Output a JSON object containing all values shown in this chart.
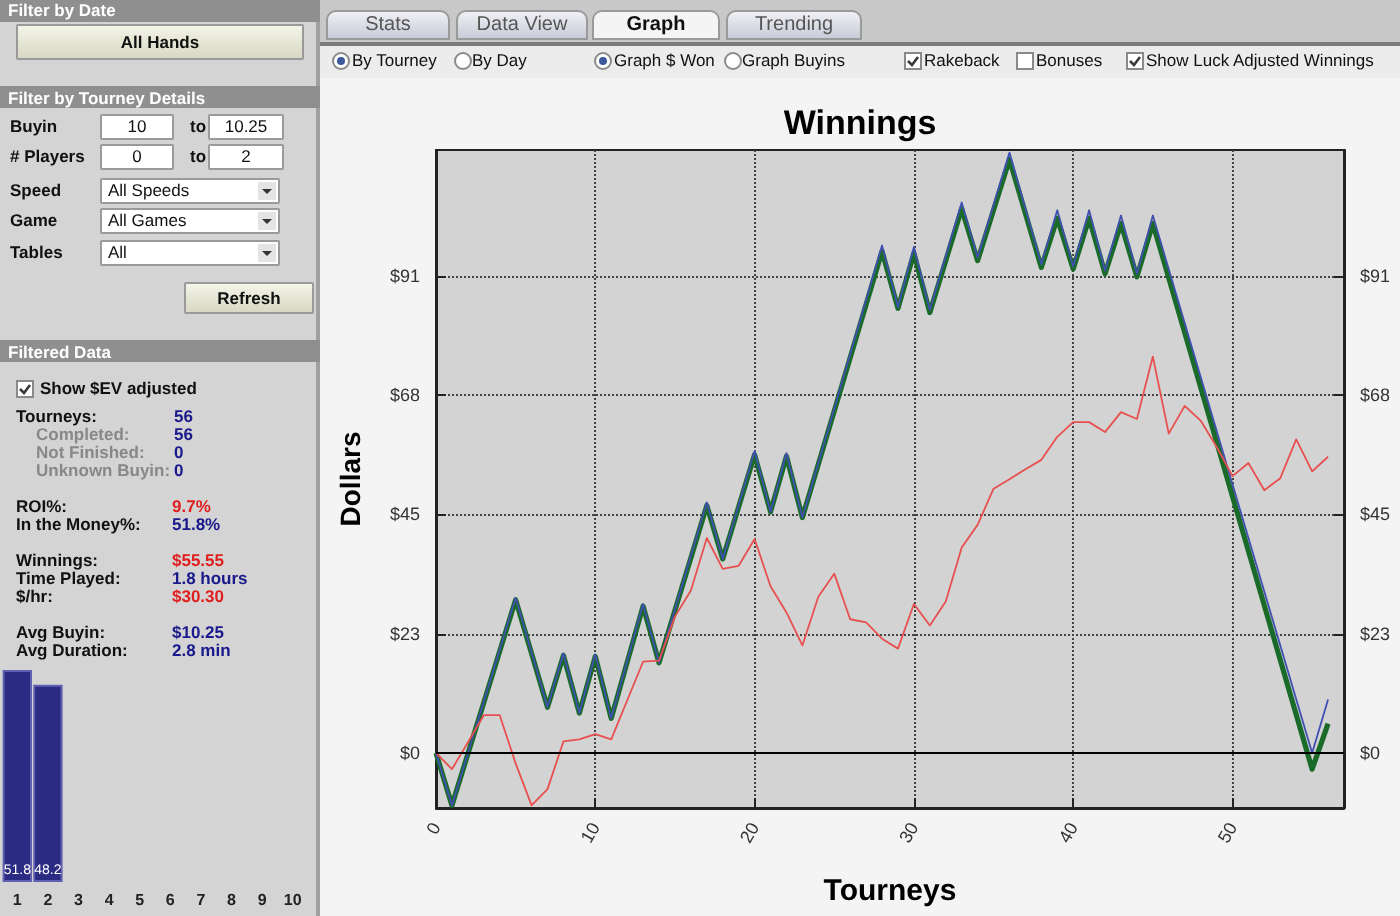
{
  "chart_data": [
    {
      "type": "other",
      "annotations": [
        "Filter by Date",
        "All Hands",
        "Filter by Tourney Details",
        "Buyin",
        "10",
        "to",
        "10.25",
        "# Players",
        "0",
        "to",
        "2",
        "Speed",
        "All Speeds",
        "Game",
        "All Games",
        "Tables",
        "All",
        "Refresh",
        "Filtered Data",
        "Show $EV adjusted",
        "Tourneys:",
        "56",
        "Completed:",
        "56",
        "Not Finished:",
        "0",
        "Unknown Buyin:",
        "0",
        "ROI%:",
        "9.7%",
        "In the Money%:",
        "51.8%",
        "Winnings:",
        "$55.55",
        "Time Played:",
        "1.8 hours",
        "$/hr:",
        "$30.30",
        "Avg Buyin:",
        "$10.25",
        "Avg Duration:",
        "2.8 min",
        "Stats",
        "Data View",
        "Graph",
        "Trending",
        "By Tourney",
        "By Day",
        "Graph $ Won",
        "Graph Buyins",
        "Rakeback",
        "Bonuses",
        "Show Luck Adjusted Winnings"
      ]
    },
    {
      "type": "bar",
      "categories": [
        "1",
        "2",
        "3",
        "4",
        "5",
        "6",
        "7",
        "8",
        "9",
        "10"
      ],
      "values": [
        51.8,
        48.2,
        null,
        null,
        null,
        null,
        null,
        null,
        null,
        null
      ],
      "color": "#2b2b84",
      "data_labels": true
    },
    {
      "type": "line",
      "title": "Winnings",
      "xlabel": "Tourneys",
      "ylabel": "Dollars",
      "xlim": [
        0,
        57
      ],
      "ylim": [
        -10.5,
        115
      ],
      "xticks": [
        0,
        10,
        20,
        30,
        40,
        50
      ],
      "yticks": [
        {
          "value": 0,
          "label": "$0"
        },
        {
          "value": 22.75,
          "label": "$23"
        },
        {
          "value": 45.5,
          "label": "$45"
        },
        {
          "value": 68.25,
          "label": "$68"
        },
        {
          "value": 91,
          "label": "$91"
        }
      ],
      "y2lim": [
        -10.5,
        115
      ],
      "y2ticks": [
        {
          "value": 0,
          "label": "$0"
        },
        {
          "value": 22.75,
          "label": "$23"
        },
        {
          "value": 45.5,
          "label": "$45"
        },
        {
          "value": 68.25,
          "label": "$68"
        },
        {
          "value": 91,
          "label": "$91"
        }
      ],
      "grid": true,
      "marker": "none",
      "line_style": "solid",
      "ref_lines": [
        {
          "axis": "y",
          "value": 0,
          "color": "#000000"
        }
      ],
      "series": [
        {
          "color": "#1a6b2a",
          "x": [
            0,
            1,
            5,
            7,
            8,
            9,
            10,
            11,
            13,
            14,
            17,
            18,
            20,
            21,
            22,
            23,
            28,
            29,
            30,
            31,
            33,
            34,
            36,
            38,
            39,
            40,
            41,
            42,
            43,
            44,
            45,
            55,
            56
          ],
          "values": [
            0,
            -10,
            29.2,
            8.7,
            18.6,
            7.6,
            18.4,
            6.6,
            28,
            17.2,
            47.2,
            37,
            56.9,
            46,
            56.6,
            44.9,
            95.7,
            84.8,
            95.3,
            84,
            103.8,
            93.9,
            113.2,
            92.6,
            102,
            92.3,
            102,
            91.4,
            101,
            90.8,
            101,
            -3.1,
            5.6
          ]
        },
        {
          "color": "#4050b0",
          "x": [
            0,
            1,
            5,
            7,
            8,
            9,
            10,
            11,
            13,
            14,
            17,
            18,
            20,
            21,
            22,
            23,
            28,
            29,
            30,
            31,
            33,
            34,
            36,
            38,
            39,
            40,
            41,
            42,
            43,
            44,
            45,
            55,
            56
          ],
          "values": [
            0,
            -10,
            29.6,
            8.7,
            19,
            7.6,
            18.8,
            6.6,
            28.4,
            17.2,
            47.8,
            37,
            57.6,
            46,
            57.2,
            44.9,
            96.8,
            85,
            96.5,
            84.5,
            105,
            94.5,
            114.5,
            93.2,
            103.5,
            92.8,
            103.5,
            92,
            102.5,
            91.4,
            102.5,
            0,
            10.2
          ]
        },
        {
          "color": "#e85050",
          "x": [
            0,
            1,
            2,
            3,
            4,
            5,
            6,
            7,
            8,
            9,
            10,
            11,
            12,
            13,
            14,
            15,
            16,
            17,
            18,
            19,
            20,
            21,
            22,
            23,
            24,
            25,
            26,
            27,
            28,
            29,
            30,
            31,
            32,
            33,
            34,
            35,
            36,
            37,
            38,
            39,
            40,
            41,
            42,
            43,
            44,
            45,
            46,
            47,
            48,
            49,
            50,
            51,
            52,
            53,
            54,
            55,
            56
          ],
          "values": [
            0,
            -3.1,
            2,
            7.2,
            7.2,
            -2,
            -10,
            -6.9,
            2.2,
            2.6,
            3.6,
            2.6,
            10,
            17.4,
            17.6,
            26,
            31,
            41,
            35.1,
            35.7,
            40.8,
            31.8,
            26.8,
            20.5,
            29.8,
            34.2,
            25.5,
            24.9,
            21.8,
            19.9,
            28.4,
            24.3,
            28.9,
            39.2,
            43.5,
            50.4,
            52.2,
            54.1,
            55.9,
            60.3,
            63.1,
            63.1,
            61.2,
            65,
            63.7,
            75.6,
            60.9,
            66.2,
            63.4,
            58.4,
            52.8,
            55.3,
            50.1,
            52.4,
            59.8,
            53.7,
            56.5
          ]
        }
      ]
    }
  ]
}
